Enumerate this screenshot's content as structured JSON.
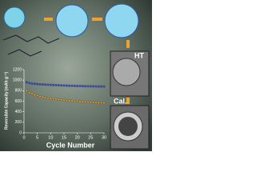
{
  "chart_data": {
    "type": "scatter",
    "xlabel": "Cycle Number",
    "ylabel": "Reversible Capacity (mAh g⁻¹)",
    "x": [
      1,
      2,
      3,
      4,
      5,
      6,
      7,
      8,
      9,
      10,
      11,
      12,
      13,
      14,
      15,
      16,
      17,
      18,
      19,
      20,
      21,
      22,
      23,
      24,
      25,
      26,
      27,
      28,
      29,
      30
    ],
    "series": [
      {
        "color": "#3a4fd8",
        "values": [
          960,
          945,
          935,
          930,
          925,
          920,
          918,
          915,
          912,
          910,
          908,
          905,
          903,
          900,
          898,
          896,
          894,
          892,
          890,
          889,
          888,
          886,
          885,
          884,
          883,
          882,
          881,
          880,
          880,
          879
        ]
      },
      {
        "color": "#e8a030",
        "values": [
          800,
          760,
          740,
          720,
          705,
          690,
          680,
          670,
          660,
          652,
          645,
          638,
          632,
          626,
          620,
          615,
          610,
          606,
          602,
          598,
          594,
          590,
          587,
          584,
          581,
          578,
          575,
          572,
          570,
          568
        ]
      }
    ],
    "xlim": [
      0,
      30
    ],
    "xticks": [
      0,
      5,
      10,
      15,
      20,
      25,
      30
    ],
    "ylim": [
      0,
      1200
    ],
    "yticks": [
      0,
      200,
      400,
      600,
      800,
      1000,
      1200
    ],
    "annotations": [
      "HT",
      "Cal."
    ]
  }
}
